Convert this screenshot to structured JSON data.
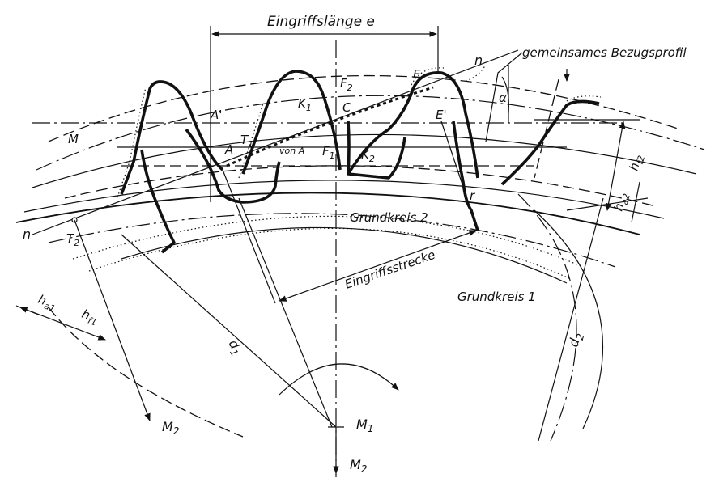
{
  "title": "Eingriffslänge e",
  "labels": {
    "bezugsprofil": "gemeinsames Bezugsprofil",
    "n_top": "n",
    "n_left": "n",
    "alpha": "α",
    "E": "E",
    "E_prime": "E'",
    "F2": "F",
    "F2_sub": "2",
    "A_prime": "A'",
    "K1": "K",
    "K1_sub": "1",
    "C": "C",
    "M": "M",
    "A": "A",
    "T1": "T",
    "T1_sub": "1",
    "von_A": "von A",
    "F1": "F",
    "F1_sub": "1",
    "K2": "K",
    "K2_sub": "2",
    "hf2": "h",
    "hf2_sub": "f2",
    "ha2": "h",
    "ha2_sub": "a2",
    "r": "r",
    "grundkreis2": "Grundkreis 2",
    "grundkreis1": "Grundkreis 1",
    "eingriffsstrecke": "Eingriffsstrecke",
    "T2": "T",
    "T2_sub": "2",
    "ha1": "h",
    "ha1_sub": "a1",
    "hf1": "h",
    "hf1_sub": "f1",
    "d1": "d",
    "d1_sub": "1",
    "d2": "d",
    "d2_sub": "2",
    "M2_left": "M",
    "M2_left_sub": "2",
    "M1": "M",
    "M1_sub": "1",
    "M2_bottom": "M",
    "M2_bottom_sub": "2"
  }
}
